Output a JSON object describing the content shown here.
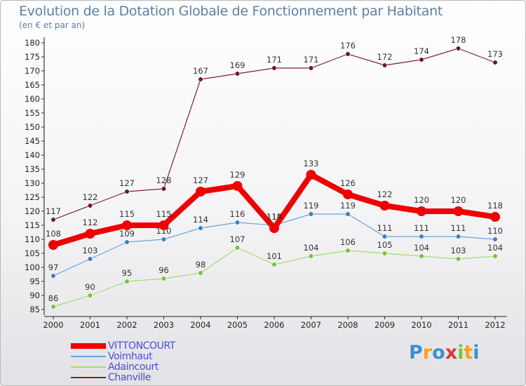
{
  "title": "Evolution de la Dotation Globale de Fonctionnement par Habitant",
  "subtitle": "(en € et par an)",
  "logo": {
    "text": "Proxiti",
    "colors": [
      "#3a8fd0",
      "#f7a21b",
      "#3a8fd0",
      "#d93a3a",
      "#7cc23a",
      "#f7a21b",
      "#3a8fd0"
    ]
  },
  "chart_data": {
    "type": "line",
    "title": "Evolution de la Dotation Globale de Fonctionnement par Habitant",
    "subtitle": "(en € et par an)",
    "categories": [
      "2000",
      "2001",
      "2002",
      "2003",
      "2004",
      "2005",
      "2006",
      "2007",
      "2008",
      "2009",
      "2010",
      "2011",
      "2012"
    ],
    "ylim": [
      85,
      180
    ],
    "yticks": [
      85,
      90,
      95,
      100,
      105,
      110,
      115,
      120,
      125,
      130,
      135,
      140,
      145,
      150,
      155,
      160,
      165,
      170,
      175,
      180
    ],
    "grid": false,
    "legend_position": "bottom-left",
    "series": [
      {
        "name": "Chanville",
        "color": "#7a2328",
        "marker": "#6b1a1f",
        "values": [
          117,
          122,
          127,
          128,
          167,
          169,
          171,
          171,
          176,
          172,
          174,
          178,
          173
        ]
      },
      {
        "name": "Adaincourt",
        "color": "#a3dc6e",
        "marker": "#76c23a",
        "values": [
          86,
          90,
          95,
          96,
          98,
          107,
          101,
          104,
          106,
          105,
          104,
          103,
          104
        ]
      },
      {
        "name": "Voimhaut",
        "color": "#6ba3d6",
        "marker": "#3b7fc2",
        "values": [
          97,
          103,
          109,
          110,
          114,
          116,
          115,
          119,
          119,
          111,
          111,
          111,
          110
        ]
      },
      {
        "name": "VITTONCOURT",
        "color": "#ee0000",
        "marker": "#ee0000",
        "values": [
          108,
          112,
          115,
          115,
          127,
          129,
          114,
          133,
          126,
          122,
          120,
          120,
          118
        ]
      }
    ],
    "legend": [
      "VITTONCOURT",
      "Voimhaut",
      "Adaincourt",
      "Chanville"
    ]
  }
}
